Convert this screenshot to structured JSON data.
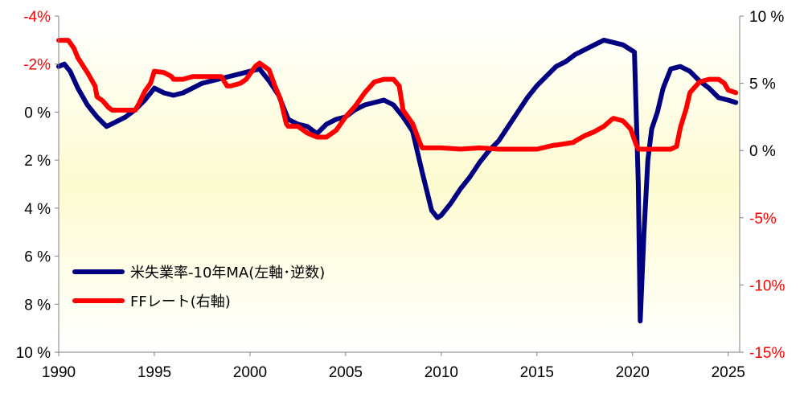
{
  "chart_data": {
    "type": "line",
    "xlim": [
      1990,
      2025.6
    ],
    "x_ticks": [
      1990,
      1995,
      2000,
      2005,
      2010,
      2015,
      2020,
      2025
    ],
    "x_tick_labels": [
      "1990",
      "1995",
      "2000",
      "2005",
      "2010",
      "2015",
      "2020",
      "2025"
    ],
    "y_left": {
      "inverted": true,
      "ylim": [
        -4,
        10
      ],
      "ticks": [
        -4,
        -2,
        0,
        2,
        4,
        6,
        8,
        10
      ],
      "tick_labels": [
        "-4%",
        "-2%",
        "0 %",
        "2 %",
        "4 %",
        "6 %",
        "8 %",
        "10 %"
      ],
      "negative_label_color": "#ff0000",
      "positive_label_color": "#000000"
    },
    "y_right": {
      "ylim": [
        -15,
        10
      ],
      "ticks": [
        10,
        5,
        0,
        -5,
        -10,
        -15
      ],
      "tick_labels": [
        "10 %",
        "5 %",
        "0 %",
        "-5%",
        "-10%",
        "-15%"
      ],
      "negative_label_color": "#ff0000",
      "positive_label_color": "#000000"
    },
    "background": {
      "gradient_top": "#ffffff",
      "gradient_band": "#fdfbd0",
      "band_center_value": 3,
      "gradient_bottom": "#ffffff"
    },
    "grid": false,
    "legend_placement": "lower-left",
    "series": [
      {
        "name": "米失業率-10年MA(左軸･逆数)",
        "axis": "left",
        "color": "#000080",
        "x": [
          1990.0,
          1990.3,
          1990.6,
          1991.0,
          1991.5,
          1992.0,
          1992.5,
          1993.0,
          1993.5,
          1994.0,
          1994.5,
          1995.0,
          1995.5,
          1996.0,
          1996.5,
          1997.0,
          1997.5,
          1998.0,
          1998.5,
          1999.0,
          1999.5,
          2000.0,
          2000.5,
          2001.0,
          2001.5,
          2002.0,
          2002.5,
          2003.0,
          2003.5,
          2004.0,
          2004.5,
          2005.0,
          2005.5,
          2006.0,
          2006.5,
          2007.0,
          2007.5,
          2008.0,
          2008.5,
          2009.0,
          2009.5,
          2009.8,
          2010.0,
          2010.5,
          2011.0,
          2011.5,
          2012.0,
          2012.5,
          2013.0,
          2013.5,
          2014.0,
          2014.5,
          2015.0,
          2015.5,
          2016.0,
          2016.5,
          2017.0,
          2017.5,
          2018.0,
          2018.5,
          2019.0,
          2019.5,
          2019.9,
          2020.1,
          2020.3,
          2020.4,
          2020.6,
          2020.8,
          2021.0,
          2021.3,
          2021.6,
          2022.0,
          2022.5,
          2023.0,
          2023.5,
          2024.0,
          2024.5,
          2025.0,
          2025.4
        ],
        "y": [
          -1.9,
          -2.0,
          -1.7,
          -1.0,
          -0.3,
          0.2,
          0.6,
          0.4,
          0.2,
          -0.1,
          -0.5,
          -1.0,
          -0.8,
          -0.7,
          -0.8,
          -1.0,
          -1.2,
          -1.3,
          -1.4,
          -1.5,
          -1.6,
          -1.7,
          -1.8,
          -1.3,
          -0.7,
          0.3,
          0.5,
          0.6,
          0.9,
          0.5,
          0.3,
          0.2,
          -0.1,
          -0.3,
          -0.4,
          -0.5,
          -0.3,
          0.2,
          0.8,
          2.5,
          4.1,
          4.4,
          4.3,
          3.8,
          3.2,
          2.7,
          2.1,
          1.6,
          1.2,
          0.6,
          0.0,
          -0.6,
          -1.1,
          -1.5,
          -1.9,
          -2.1,
          -2.4,
          -2.6,
          -2.8,
          -3.0,
          -2.9,
          -2.8,
          -2.6,
          -2.5,
          3.0,
          8.7,
          5.0,
          2.0,
          0.7,
          0.0,
          -1.0,
          -1.8,
          -1.9,
          -1.7,
          -1.3,
          -1.0,
          -0.6,
          -0.5,
          -0.4
        ]
      },
      {
        "name": "FFレート(右軸)",
        "axis": "right",
        "color": "#ff0000",
        "x": [
          1990.0,
          1990.5,
          1990.8,
          1991.0,
          1991.5,
          1991.9,
          1992.0,
          1992.3,
          1992.6,
          1992.8,
          1993.0,
          1993.5,
          1994.0,
          1994.2,
          1994.5,
          1994.8,
          1995.0,
          1995.5,
          1995.9,
          1996.0,
          1996.5,
          1997.0,
          1997.5,
          1998.0,
          1998.5,
          1998.8,
          1999.0,
          1999.5,
          1999.8,
          2000.0,
          2000.3,
          2000.5,
          2001.0,
          2001.3,
          2001.6,
          2001.9,
          2002.0,
          2002.5,
          2003.0,
          2003.5,
          2004.0,
          2004.5,
          2005.0,
          2005.5,
          2006.0,
          2006.5,
          2007.0,
          2007.5,
          2007.8,
          2008.0,
          2008.5,
          2008.9,
          2009.0,
          2010.0,
          2011.0,
          2012.0,
          2013.0,
          2014.0,
          2015.0,
          2015.9,
          2016.0,
          2016.9,
          2017.0,
          2017.5,
          2018.0,
          2018.5,
          2018.9,
          2019.0,
          2019.5,
          2019.9,
          2020.2,
          2020.3,
          2021.0,
          2022.0,
          2022.3,
          2022.5,
          2022.8,
          2023.0,
          2023.5,
          2024.0,
          2024.5,
          2024.8,
          2025.0,
          2025.4
        ],
        "y": [
          8.2,
          8.2,
          7.6,
          6.9,
          5.8,
          4.8,
          4.0,
          3.7,
          3.2,
          3.0,
          3.0,
          3.0,
          3.0,
          3.5,
          4.4,
          5.0,
          5.9,
          5.8,
          5.5,
          5.3,
          5.3,
          5.5,
          5.5,
          5.5,
          5.5,
          4.8,
          4.8,
          5.0,
          5.3,
          5.7,
          6.3,
          6.5,
          6.0,
          4.8,
          3.8,
          2.0,
          1.8,
          1.8,
          1.3,
          1.0,
          1.0,
          1.5,
          2.5,
          3.3,
          4.3,
          5.1,
          5.3,
          5.3,
          4.8,
          3.0,
          2.0,
          0.5,
          0.2,
          0.2,
          0.1,
          0.2,
          0.1,
          0.1,
          0.1,
          0.4,
          0.4,
          0.6,
          0.7,
          1.1,
          1.4,
          1.8,
          2.3,
          2.4,
          2.2,
          1.6,
          0.4,
          0.1,
          0.1,
          0.1,
          0.3,
          1.7,
          3.1,
          4.3,
          5.1,
          5.3,
          5.3,
          5.0,
          4.5,
          4.3
        ]
      }
    ]
  }
}
